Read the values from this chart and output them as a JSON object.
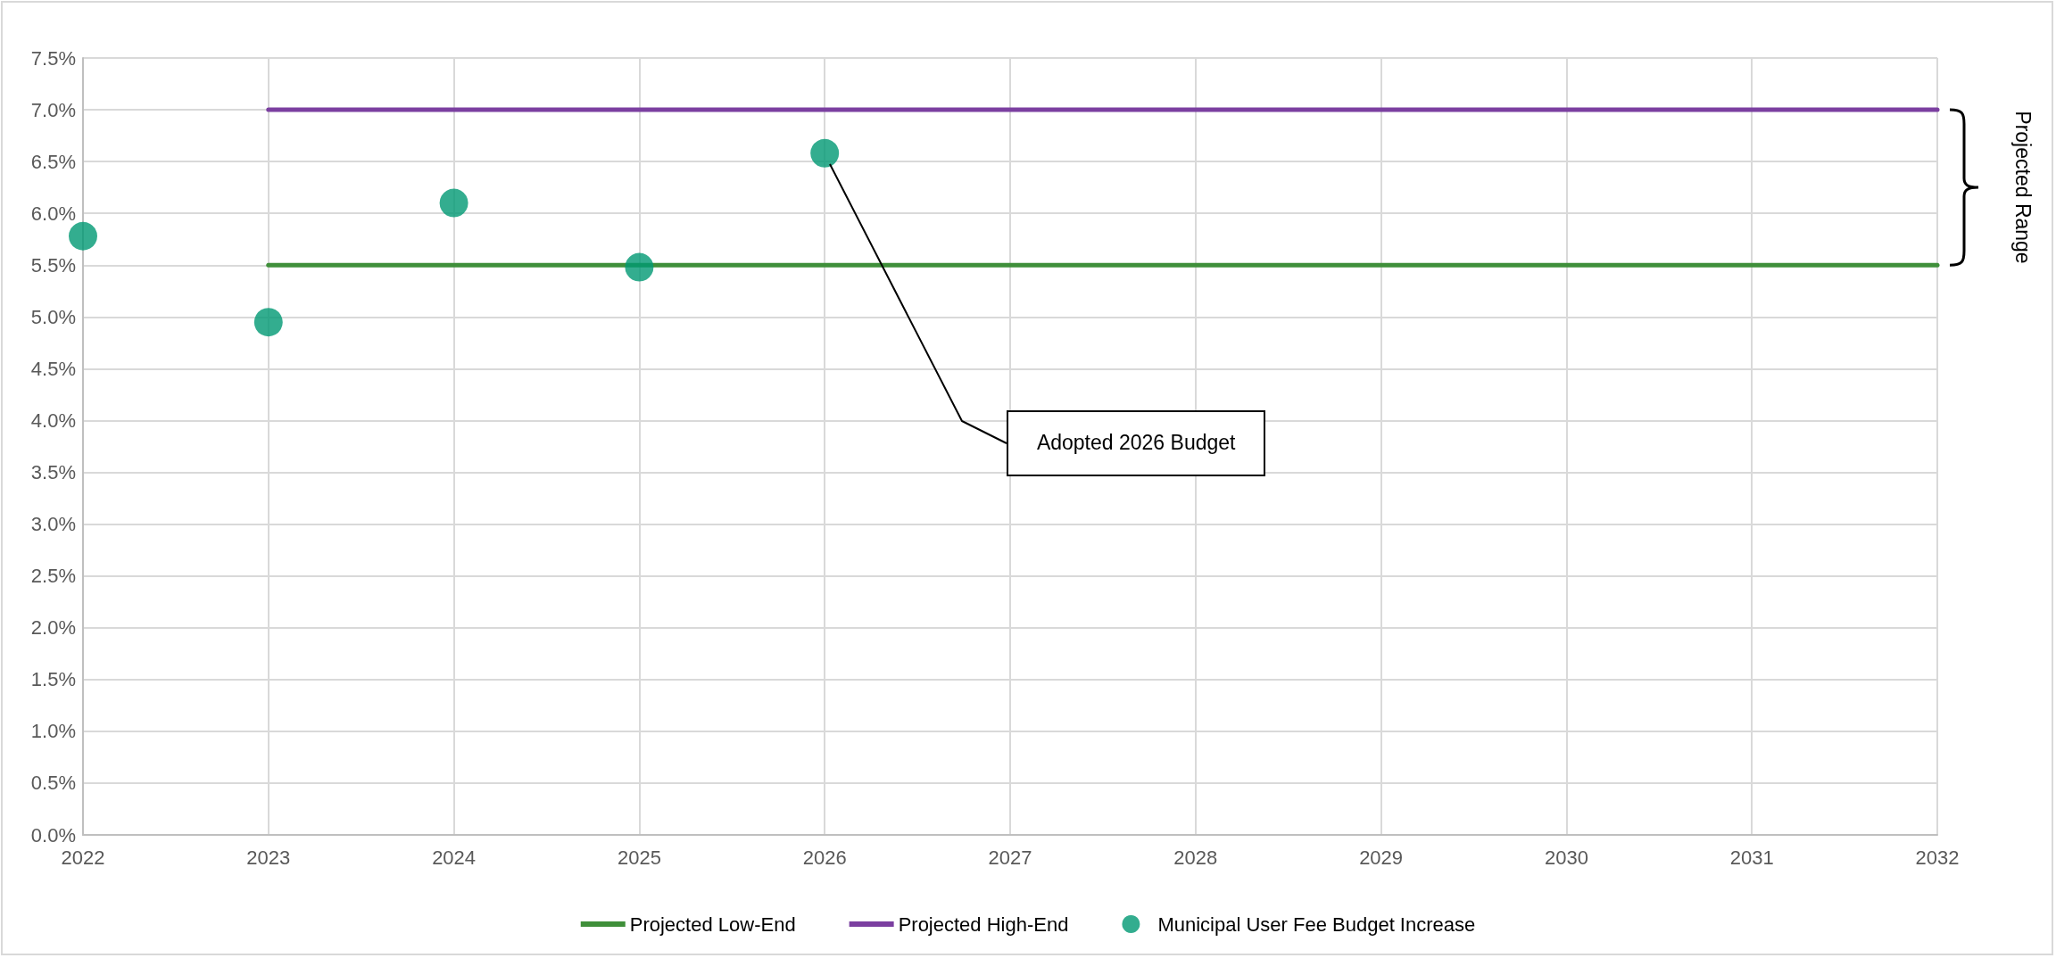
{
  "chart_data": {
    "type": "scatter",
    "xlim": [
      2022,
      2032
    ],
    "xticks": [
      2022,
      2023,
      2024,
      2025,
      2026,
      2027,
      2028,
      2029,
      2030,
      2031,
      2032
    ],
    "ylim": [
      0,
      7.5
    ],
    "yticks": [
      {
        "value": 0,
        "label": "0.0%"
      },
      {
        "value": 0.5,
        "label": "0.5%"
      },
      {
        "value": 1,
        "label": "1.0%"
      },
      {
        "value": 1.5,
        "label": "1.5%"
      },
      {
        "value": 2,
        "label": "2.0%"
      },
      {
        "value": 2.5,
        "label": "2.5%"
      },
      {
        "value": 3,
        "label": "3.0%"
      },
      {
        "value": 3.5,
        "label": "3.5%"
      },
      {
        "value": 4,
        "label": "4.0%"
      },
      {
        "value": 4.5,
        "label": "4.5%"
      },
      {
        "value": 5,
        "label": "5.0%"
      },
      {
        "value": 5.5,
        "label": "5.5%"
      },
      {
        "value": 6,
        "label": "6.0%"
      },
      {
        "value": 6.5,
        "label": "6.5%"
      },
      {
        "value": 7,
        "label": "7.0%"
      },
      {
        "value": 7.5,
        "label": "7.5%"
      }
    ],
    "series": [
      {
        "name": "Projected Low-End",
        "type": "line",
        "color": "#3f8f3a",
        "x": [
          2023,
          2032
        ],
        "values": [
          5.5,
          5.5
        ]
      },
      {
        "name": "Projected High-End",
        "type": "line",
        "color": "#7b3fa0",
        "x": [
          2023,
          2032
        ],
        "values": [
          7,
          7
        ]
      },
      {
        "name": "Municipal User Fee Budget Increase",
        "type": "scatter",
        "color": "#009973",
        "x": [
          2022,
          2023,
          2024,
          2025,
          2026
        ],
        "values": [
          5.78,
          4.95,
          6.1,
          5.48,
          6.58
        ],
        "marker": "circle"
      }
    ],
    "annotations": [
      "Adopted 2026 Budget",
      "Projected Range"
    ],
    "grid": true,
    "legend": "bottom",
    "line_style": "solid"
  }
}
